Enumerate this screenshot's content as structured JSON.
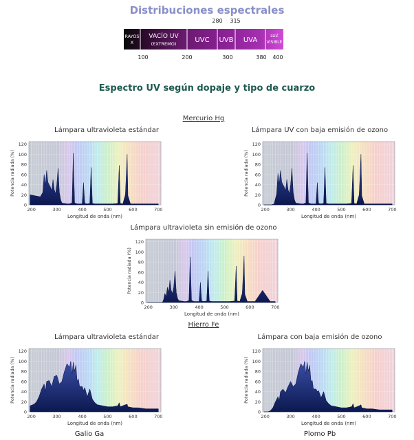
{
  "header": {
    "title": "Distribuciones espectrales",
    "section_title": "Espectro UV según dopaje y tipo de cuarzo"
  },
  "spectrum_bar": {
    "bands": [
      {
        "label": "RAYOS X",
        "color": "#101010"
      },
      {
        "label": "VACÍO UV",
        "sublabel": "(EXTREMO)",
        "color": "#5a1a5a"
      },
      {
        "label": "UVC",
        "color": "#7a2080"
      },
      {
        "label": "UVB",
        "color": "#8a2a92"
      },
      {
        "label": "UVA",
        "color": "#a030a8"
      },
      {
        "label": "LUZ VISIBLE",
        "color": "#c040d0"
      }
    ],
    "top_ticks": [
      "280",
      "315"
    ],
    "bottom_ticks": [
      "100",
      "200",
      "300",
      "380",
      "400"
    ]
  },
  "groups": {
    "mercurio": "Mercurio Hg",
    "hierro": "Hierro Fe",
    "galio": "Galio Ga",
    "plomo": "Plomo Pb"
  },
  "axis_common": {
    "ylabel": "Potencia radiada (%)",
    "xlabel": "Longitud de onda (nm)",
    "xlim": [
      190,
      710
    ],
    "ylim": [
      0,
      125
    ],
    "x_ticks": [
      200,
      300,
      400,
      500,
      600,
      700
    ],
    "y_ticks": [
      0,
      20,
      40,
      60,
      80,
      100,
      120
    ]
  },
  "chart_data": [
    {
      "id": "hg-standard",
      "type": "area",
      "title": "Lámpara ultravioleta estándar",
      "xlabel": "Longitud de onda (nm)",
      "ylabel": "Potencia radiada (%)",
      "x": [
        195,
        205,
        215,
        225,
        235,
        245,
        250,
        255,
        260,
        265,
        270,
        275,
        280,
        285,
        290,
        295,
        300,
        305,
        310,
        315,
        320,
        325,
        330,
        340,
        350,
        360,
        365,
        370,
        380,
        390,
        400,
        405,
        410,
        420,
        430,
        435,
        440,
        450,
        460,
        480,
        500,
        520,
        540,
        546,
        550,
        560,
        570,
        577,
        580,
        590,
        600,
        620,
        650,
        680,
        700
      ],
      "y": [
        20,
        19,
        18,
        17,
        16,
        25,
        60,
        38,
        68,
        45,
        40,
        35,
        28,
        50,
        30,
        22,
        40,
        72,
        25,
        10,
        4,
        3,
        3,
        2,
        2,
        4,
        102,
        4,
        2,
        2,
        2,
        44,
        3,
        2,
        3,
        74,
        3,
        2,
        2,
        2,
        2,
        2,
        3,
        78,
        3,
        2,
        20,
        100,
        18,
        2,
        2,
        2,
        2,
        2,
        2
      ]
    },
    {
      "id": "hg-low-ozone",
      "type": "area",
      "title": "Lámpara UV con baja emisión de ozono",
      "xlabel": "Longitud de onda (nm)",
      "ylabel": "Potencia radiada (%)",
      "x": [
        195,
        205,
        215,
        225,
        235,
        245,
        250,
        255,
        260,
        265,
        270,
        275,
        280,
        285,
        290,
        295,
        300,
        305,
        310,
        315,
        320,
        325,
        330,
        340,
        350,
        360,
        365,
        370,
        380,
        390,
        400,
        405,
        410,
        420,
        430,
        435,
        440,
        450,
        460,
        480,
        500,
        520,
        540,
        546,
        550,
        560,
        570,
        577,
        580,
        590,
        600,
        620,
        650,
        680,
        700
      ],
      "y": [
        0,
        0,
        0,
        0,
        2,
        22,
        62,
        40,
        68,
        45,
        40,
        35,
        28,
        50,
        30,
        22,
        40,
        72,
        25,
        10,
        4,
        3,
        3,
        2,
        2,
        4,
        102,
        4,
        2,
        2,
        2,
        44,
        3,
        2,
        3,
        74,
        3,
        2,
        2,
        2,
        2,
        2,
        3,
        78,
        3,
        2,
        20,
        100,
        18,
        2,
        2,
        2,
        2,
        2,
        2
      ]
    },
    {
      "id": "hg-no-ozone",
      "type": "area",
      "title": "Lámpara ultravioleta sin emisión de ozono",
      "xlabel": "Longitud de onda (nm)",
      "ylabel": "Potencia radiada (%)",
      "x": [
        195,
        205,
        215,
        225,
        235,
        245,
        250,
        255,
        260,
        265,
        270,
        275,
        280,
        285,
        290,
        295,
        300,
        305,
        310,
        315,
        320,
        325,
        330,
        340,
        350,
        360,
        365,
        370,
        380,
        390,
        400,
        405,
        410,
        420,
        430,
        435,
        440,
        450,
        460,
        480,
        500,
        520,
        540,
        546,
        550,
        560,
        570,
        577,
        580,
        590,
        600,
        620,
        650,
        680,
        700
      ],
      "y": [
        0,
        0,
        0,
        0,
        0,
        0,
        0,
        0,
        5,
        18,
        12,
        30,
        20,
        44,
        24,
        18,
        30,
        62,
        20,
        8,
        4,
        3,
        3,
        2,
        2,
        4,
        90,
        4,
        2,
        2,
        2,
        40,
        3,
        2,
        3,
        62,
        3,
        2,
        2,
        2,
        2,
        2,
        3,
        72,
        3,
        2,
        18,
        92,
        16,
        2,
        2,
        2,
        24,
        2,
        2
      ]
    },
    {
      "id": "fe-standard",
      "type": "area",
      "title": "Lámpara ultravioleta estándar",
      "xlabel": "Longitud de onda (nm)",
      "ylabel": "Potencia radiada (%)",
      "x": [
        195,
        210,
        220,
        230,
        240,
        250,
        255,
        260,
        270,
        280,
        290,
        300,
        310,
        320,
        330,
        340,
        350,
        355,
        360,
        365,
        370,
        375,
        380,
        385,
        390,
        400,
        405,
        410,
        420,
        430,
        440,
        450,
        460,
        480,
        500,
        520,
        540,
        546,
        550,
        570,
        577,
        580,
        600,
        620,
        650,
        680,
        700
      ],
      "y": [
        12,
        15,
        20,
        30,
        45,
        55,
        40,
        60,
        62,
        50,
        70,
        72,
        55,
        60,
        80,
        95,
        88,
        100,
        75,
        98,
        80,
        92,
        60,
        65,
        50,
        50,
        42,
        48,
        30,
        45,
        25,
        18,
        14,
        12,
        10,
        10,
        12,
        18,
        10,
        14,
        15,
        10,
        8,
        8,
        6,
        6,
        6
      ]
    },
    {
      "id": "fe-low-ozone",
      "type": "area",
      "title": "Lámpara con baja emisión de ozono",
      "xlabel": "Longitud de onda (nm)",
      "ylabel": "Potencia radiada (%)",
      "x": [
        195,
        210,
        220,
        230,
        240,
        250,
        255,
        260,
        270,
        280,
        290,
        300,
        310,
        320,
        330,
        340,
        350,
        355,
        360,
        365,
        370,
        375,
        380,
        385,
        390,
        400,
        405,
        410,
        420,
        430,
        440,
        450,
        460,
        480,
        500,
        520,
        540,
        546,
        550,
        570,
        577,
        580,
        600,
        620,
        650,
        680,
        700
      ],
      "y": [
        0,
        0,
        2,
        8,
        20,
        30,
        22,
        40,
        45,
        38,
        50,
        60,
        50,
        55,
        78,
        95,
        88,
        100,
        75,
        98,
        80,
        92,
        60,
        62,
        45,
        45,
        40,
        42,
        28,
        40,
        22,
        16,
        12,
        10,
        8,
        8,
        10,
        16,
        8,
        12,
        14,
        8,
        6,
        6,
        4,
        4,
        4
      ]
    }
  ]
}
